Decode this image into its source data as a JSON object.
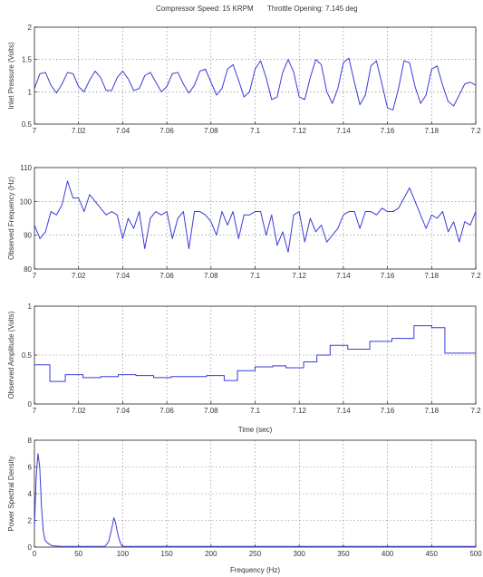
{
  "figure": {
    "title_left": "Compressor Speed: 15 KRPM",
    "title_right": "Throttle Opening: 7.145 deg",
    "line_color": "#3a3ad8"
  },
  "chart_data": [
    {
      "type": "line",
      "ylabel": "Inlet Pressure (Volts)",
      "xlabel": "",
      "xlim": [
        7,
        7.2
      ],
      "ylim": [
        0.5,
        2
      ],
      "grid": true,
      "xticks": [
        7,
        7.02,
        7.04,
        7.06,
        7.08,
        7.1,
        7.12,
        7.14,
        7.16,
        7.18,
        7.2
      ],
      "xtick_labels": [
        "7",
        "7.02",
        "7.04",
        "7.06",
        "7.08",
        "7.1",
        "7.12",
        "7.14",
        "7.16",
        "7.18",
        "7.2"
      ],
      "yticks": [
        0.5,
        1,
        1.5,
        2
      ],
      "ytick_labels": [
        "0.5",
        "1",
        "1.5",
        "2"
      ],
      "series": [
        {
          "x": [
            7.0,
            7.0025,
            7.005,
            7.0075,
            7.01,
            7.0125,
            7.015,
            7.0175,
            7.02,
            7.0225,
            7.025,
            7.0275,
            7.03,
            7.0325,
            7.035,
            7.0375,
            7.04,
            7.0425,
            7.045,
            7.0475,
            7.05,
            7.0525,
            7.055,
            7.0575,
            7.06,
            7.0625,
            7.065,
            7.0675,
            7.07,
            7.0725,
            7.075,
            7.0775,
            7.08,
            7.0825,
            7.085,
            7.0875,
            7.09,
            7.0925,
            7.095,
            7.0975,
            7.1,
            7.1025,
            7.105,
            7.1075,
            7.11,
            7.1125,
            7.115,
            7.1175,
            7.12,
            7.1225,
            7.125,
            7.1275,
            7.13,
            7.1325,
            7.135,
            7.1375,
            7.14,
            7.1425,
            7.145,
            7.1475,
            7.15,
            7.1525,
            7.155,
            7.1575,
            7.16,
            7.1625,
            7.165,
            7.1675,
            7.17,
            7.1725,
            7.175,
            7.1775,
            7.18,
            7.1825,
            7.185,
            7.1875,
            7.19,
            7.1925,
            7.195,
            7.1975,
            7.2
          ],
          "y": [
            1.05,
            1.28,
            1.3,
            1.1,
            0.98,
            1.12,
            1.3,
            1.28,
            1.08,
            1.0,
            1.18,
            1.32,
            1.22,
            1.02,
            1.02,
            1.22,
            1.32,
            1.2,
            1.02,
            1.05,
            1.25,
            1.3,
            1.15,
            1.0,
            1.08,
            1.28,
            1.3,
            1.12,
            0.98,
            1.1,
            1.32,
            1.35,
            1.15,
            0.95,
            1.05,
            1.35,
            1.42,
            1.18,
            0.92,
            1.0,
            1.35,
            1.48,
            1.22,
            0.88,
            0.92,
            1.3,
            1.5,
            1.3,
            0.92,
            0.88,
            1.22,
            1.5,
            1.42,
            1.0,
            0.82,
            1.05,
            1.45,
            1.52,
            1.15,
            0.8,
            0.95,
            1.4,
            1.48,
            1.12,
            0.75,
            0.72,
            1.05,
            1.48,
            1.45,
            1.08,
            0.82,
            0.95,
            1.35,
            1.4,
            1.1,
            0.85,
            0.78,
            0.95,
            1.12,
            1.15,
            1.1
          ]
        }
      ]
    },
    {
      "type": "line",
      "ylabel": "Observed Frequency (Hz)",
      "xlabel": "",
      "xlim": [
        7,
        7.2
      ],
      "ylim": [
        80,
        110
      ],
      "grid": true,
      "xticks": [
        7,
        7.02,
        7.04,
        7.06,
        7.08,
        7.1,
        7.12,
        7.14,
        7.16,
        7.18,
        7.2
      ],
      "xtick_labels": [
        "7",
        "7.02",
        "7.04",
        "7.06",
        "7.08",
        "7.1",
        "7.12",
        "7.14",
        "7.16",
        "7.18",
        "7.2"
      ],
      "yticks": [
        80,
        90,
        100,
        110
      ],
      "ytick_labels": [
        "80",
        "90",
        "100",
        "110"
      ],
      "series": [
        {
          "x": [
            7.0,
            7.0025,
            7.005,
            7.0075,
            7.01,
            7.0125,
            7.015,
            7.0175,
            7.02,
            7.0225,
            7.025,
            7.0275,
            7.03,
            7.0325,
            7.035,
            7.0375,
            7.04,
            7.0425,
            7.045,
            7.0475,
            7.05,
            7.0525,
            7.055,
            7.0575,
            7.06,
            7.0625,
            7.065,
            7.0675,
            7.07,
            7.0725,
            7.075,
            7.0775,
            7.08,
            7.0825,
            7.085,
            7.0875,
            7.09,
            7.0925,
            7.095,
            7.0975,
            7.1,
            7.1025,
            7.105,
            7.1075,
            7.11,
            7.1125,
            7.115,
            7.1175,
            7.12,
            7.1225,
            7.125,
            7.1275,
            7.13,
            7.1325,
            7.135,
            7.1375,
            7.14,
            7.1425,
            7.145,
            7.1475,
            7.15,
            7.1525,
            7.155,
            7.1575,
            7.16,
            7.1625,
            7.165,
            7.1675,
            7.17,
            7.1725,
            7.175,
            7.1775,
            7.18,
            7.1825,
            7.185,
            7.1875,
            7.19,
            7.1925,
            7.195,
            7.1975,
            7.2
          ],
          "y": [
            93,
            89,
            91,
            97,
            96,
            99,
            106,
            101,
            101,
            97,
            102,
            100,
            98,
            96,
            97,
            96,
            89,
            95,
            92,
            97,
            86,
            95,
            97,
            96,
            97,
            89,
            95,
            97,
            86,
            97,
            97,
            96,
            94,
            90,
            97,
            93,
            97,
            89,
            96,
            96,
            97,
            97,
            90,
            96,
            87,
            91,
            85,
            96,
            97,
            88,
            95,
            91,
            93,
            88,
            90,
            92,
            96,
            97,
            97,
            92,
            97,
            97,
            96,
            98,
            97,
            97,
            98,
            101,
            104,
            100,
            96,
            92,
            96,
            95,
            97,
            91,
            94,
            88,
            94,
            93,
            97
          ]
        }
      ]
    },
    {
      "type": "line",
      "ylabel": "Observed Amplitude (Volts)",
      "xlabel": "Time (sec)",
      "xlim": [
        7,
        7.2
      ],
      "ylim": [
        0,
        1
      ],
      "grid": true,
      "xticks": [
        7,
        7.02,
        7.04,
        7.06,
        7.08,
        7.1,
        7.12,
        7.14,
        7.16,
        7.18,
        7.2
      ],
      "xtick_labels": [
        "7",
        "7.02",
        "7.04",
        "7.06",
        "7.08",
        "7.1",
        "7.12",
        "7.14",
        "7.16",
        "7.18",
        "7.2"
      ],
      "yticks": [
        0,
        0.5,
        1
      ],
      "ytick_labels": [
        "0",
        "0.5",
        "1"
      ],
      "series": [
        {
          "step": true,
          "x": [
            7.0,
            7.007,
            7.014,
            7.022,
            7.03,
            7.038,
            7.046,
            7.054,
            7.062,
            7.07,
            7.078,
            7.086,
            7.092,
            7.1,
            7.108,
            7.114,
            7.122,
            7.128,
            7.134,
            7.142,
            7.152,
            7.162,
            7.172,
            7.18,
            7.186,
            7.2
          ],
          "y": [
            0.4,
            0.23,
            0.3,
            0.27,
            0.28,
            0.3,
            0.29,
            0.27,
            0.28,
            0.28,
            0.29,
            0.24,
            0.34,
            0.38,
            0.39,
            0.37,
            0.43,
            0.5,
            0.6,
            0.56,
            0.64,
            0.67,
            0.8,
            0.78,
            0.52,
            0.52
          ]
        }
      ]
    },
    {
      "type": "line",
      "ylabel": "Power Spectral Density",
      "xlabel": "Frequency (Hz)",
      "xlim": [
        0,
        500
      ],
      "ylim": [
        0,
        8
      ],
      "grid": true,
      "xticks": [
        0,
        50,
        100,
        150,
        200,
        250,
        300,
        350,
        400,
        450,
        500
      ],
      "xtick_labels": [
        "0",
        "50",
        "100",
        "150",
        "200",
        "250",
        "300",
        "350",
        "400",
        "450",
        "500"
      ],
      "yticks": [
        0,
        2,
        4,
        6,
        8
      ],
      "ytick_labels": [
        "0",
        "2",
        "4",
        "6",
        "8"
      ],
      "series": [
        {
          "x": [
            0,
            2,
            4,
            6,
            8,
            10,
            12,
            15,
            20,
            30,
            40,
            60,
            80,
            84,
            87,
            90,
            92,
            95,
            98,
            100,
            105,
            150,
            200,
            300,
            400,
            500
          ],
          "y": [
            1.5,
            5.2,
            7.0,
            6.0,
            3.0,
            1.2,
            0.5,
            0.3,
            0.1,
            0.05,
            0.05,
            0.05,
            0.05,
            0.4,
            1.2,
            2.2,
            1.8,
            0.8,
            0.2,
            0.05,
            0.05,
            0.05,
            0.05,
            0.05,
            0.05,
            0.05
          ]
        }
      ]
    }
  ]
}
